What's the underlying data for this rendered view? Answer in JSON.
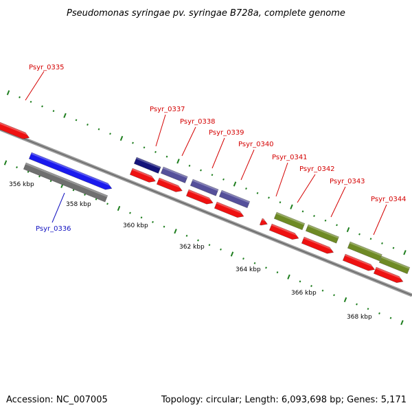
{
  "title": "Pseudomonas syringae pv. syringae B728a, complete genome",
  "accession": "Accession: NC_007005",
  "topology": "Topology: circular; Length: 6,093,698 bp; Genes: 5,171",
  "colors": {
    "gene_red": "#ee1111",
    "cds_blue": "#1a1aee",
    "cds_gray": "#6f6f6f",
    "cds_navy": "#14147a",
    "cds_slate": "#55509a",
    "cds_olive": "#6e8a25",
    "label_red": "#d40000",
    "label_blue": "#1010c0",
    "tick_green": "#1e7e1e",
    "backbone": "#808080"
  },
  "scale_labels": [
    "356 kbp",
    "358 kbp",
    "360 kbp",
    "362 kbp",
    "364 kbp",
    "366 kbp",
    "368 kbp"
  ],
  "gene_labels": [
    {
      "id": "psyr-0335",
      "text": "Psyr_0335",
      "color": "red"
    },
    {
      "id": "psyr-0336",
      "text": "Psyr_0336",
      "color": "blue"
    },
    {
      "id": "psyr-0337",
      "text": "Psyr_0337",
      "color": "red"
    },
    {
      "id": "psyr-0338",
      "text": "Psyr_0338",
      "color": "red"
    },
    {
      "id": "psyr-0339",
      "text": "Psyr_0339",
      "color": "red"
    },
    {
      "id": "psyr-0340",
      "text": "Psyr_0340",
      "color": "red"
    },
    {
      "id": "psyr-0341",
      "text": "Psyr_0341",
      "color": "red"
    },
    {
      "id": "psyr-0342",
      "text": "Psyr_0342",
      "color": "red"
    },
    {
      "id": "psyr-0343",
      "text": "Psyr_0343",
      "color": "red"
    },
    {
      "id": "psyr-0344",
      "text": "Psyr_0344",
      "color": "red"
    }
  ]
}
